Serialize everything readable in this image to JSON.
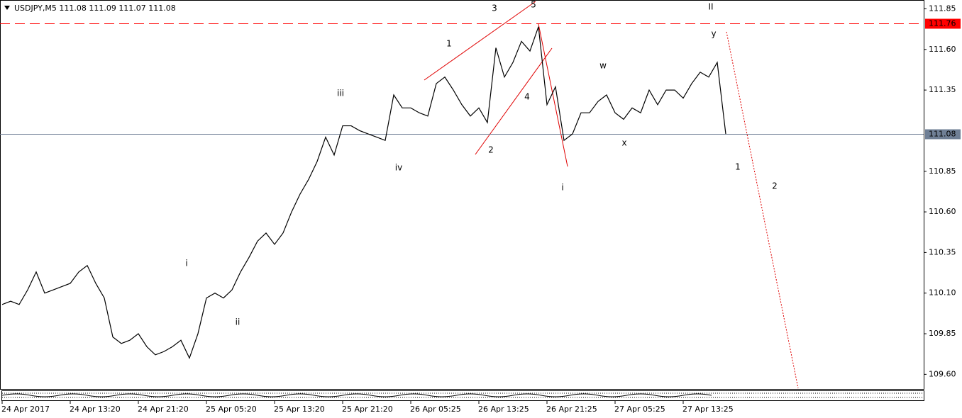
{
  "chart_data": {
    "type": "line",
    "title": "USDJPY,M5  111.08 111.09 111.07 111.08",
    "color": "#000000",
    "categories": [
      "24 Apr 2017",
      null,
      null,
      null,
      null,
      null,
      null,
      null,
      "24 Apr 13:20",
      null,
      null,
      null,
      null,
      null,
      null,
      null,
      "24 Apr 21:20",
      null,
      null,
      null,
      null,
      null,
      null,
      null,
      "25 Apr 05:20",
      null,
      null,
      null,
      null,
      null,
      null,
      null,
      "25 Apr 13:20",
      null,
      null,
      null,
      null,
      null,
      null,
      null,
      "25 Apr 21:20",
      null,
      null,
      null,
      null,
      null,
      null,
      null,
      "26 Apr 05:25",
      null,
      null,
      null,
      null,
      null,
      null,
      null,
      "26 Apr 13:25",
      null,
      null,
      null,
      null,
      null,
      null,
      null,
      "26 Apr 21:25",
      null,
      null,
      null,
      null,
      null,
      null,
      null,
      "27 Apr 05:25",
      null,
      null,
      null,
      null,
      null,
      null,
      null,
      "27 Apr 13:25",
      null,
      null,
      null,
      null,
      null
    ],
    "values": [
      110.03,
      110.05,
      110.03,
      110.12,
      110.23,
      110.1,
      110.12,
      110.14,
      110.16,
      110.23,
      110.27,
      110.16,
      110.07,
      109.83,
      109.79,
      109.81,
      109.85,
      109.77,
      109.72,
      109.74,
      109.77,
      109.81,
      109.7,
      109.85,
      110.07,
      110.1,
      110.07,
      110.12,
      110.23,
      110.32,
      110.42,
      110.47,
      110.4,
      110.47,
      110.6,
      110.71,
      110.8,
      110.91,
      111.06,
      110.95,
      111.13,
      111.13,
      111.1,
      111.08,
      111.06,
      111.04,
      111.32,
      111.24,
      111.24,
      111.21,
      111.19,
      111.39,
      111.43,
      111.35,
      111.26,
      111.19,
      111.24,
      111.15,
      111.61,
      111.43,
      111.52,
      111.65,
      111.59,
      111.74,
      111.26,
      111.37,
      111.04,
      111.08,
      111.21,
      111.21,
      111.28,
      111.32,
      111.21,
      111.17,
      111.24,
      111.21,
      111.35,
      111.26,
      111.35,
      111.35,
      111.3,
      111.39,
      111.46,
      111.43,
      111.52,
      111.08
    ],
    "ylim": [
      109.51,
      111.9
    ],
    "yticks": [
      111.85,
      {
        "value": 111.6,
        "label": "111.60"
      },
      111.35,
      110.85,
      {
        "value": 110.6,
        "label": "110.60"
      },
      110.35,
      {
        "value": 110.1,
        "label": "110.10"
      },
      109.85,
      {
        "value": 109.6,
        "label": "109.60"
      }
    ],
    "levels": [
      {
        "value": 111.76,
        "label": "111.76",
        "color": "#ff0000",
        "style": "dashed"
      },
      {
        "value": 111.08,
        "label": "111.08",
        "color": "#6f7f95",
        "style": "solid"
      }
    ],
    "annotations": [
      {
        "text": "3",
        "color": "#2323b5"
      },
      {
        "text": "5",
        "color": "#2323b5"
      },
      {
        "text": "1",
        "color": "#2323b5"
      },
      {
        "text": "2",
        "color": "#2323b5"
      },
      {
        "text": "4",
        "color": "#2323b5"
      },
      {
        "text": "w",
        "color": "#2323b5"
      },
      {
        "text": "x",
        "color": "#2323b5"
      },
      {
        "text": "y",
        "color": "#2323b5"
      },
      {
        "text": "1",
        "color": "#2323b5"
      },
      {
        "text": "2",
        "color": "#2323b5"
      },
      {
        "text": "II",
        "color": "#e00000"
      },
      {
        "text": "iii",
        "color": "#e00000"
      },
      {
        "text": "iv",
        "color": "#e00000"
      },
      {
        "text": "i",
        "color": "#e00000"
      },
      {
        "text": "i",
        "color": "#e00000"
      },
      {
        "text": "ii",
        "color": "#e00000"
      }
    ]
  }
}
